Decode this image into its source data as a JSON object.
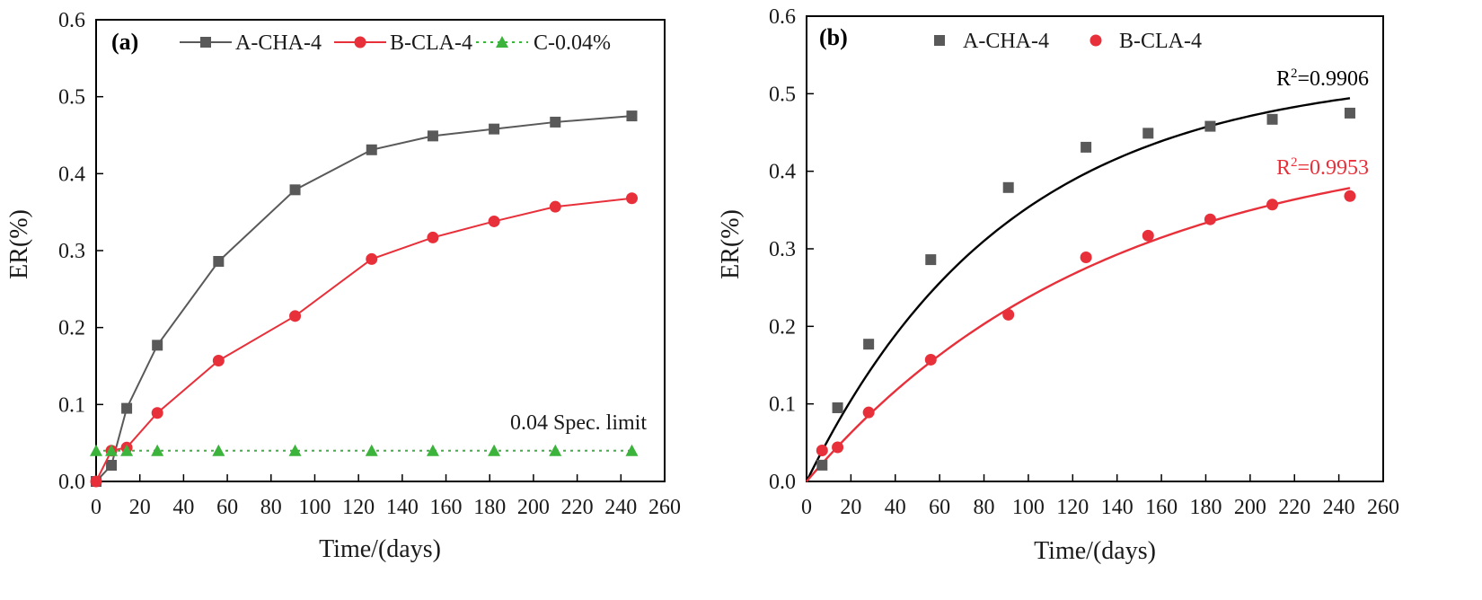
{
  "chart_data": [
    {
      "type": "line",
      "panel_label": "(a)",
      "xlabel": "Time/(days)",
      "ylabel": "ER(%)",
      "xlim": [
        0,
        260
      ],
      "ylim": [
        0,
        0.6
      ],
      "x_ticks": [
        0,
        20,
        40,
        60,
        80,
        100,
        120,
        140,
        160,
        180,
        200,
        220,
        240,
        260
      ],
      "x_tick_labels": [
        "0",
        "20",
        "40",
        "60",
        "80",
        "100",
        "120",
        "140",
        "160",
        "180",
        "200",
        "220",
        "240",
        "260"
      ],
      "y_ticks": [
        0,
        0.1,
        0.2,
        0.3,
        0.4,
        0.5,
        0.6
      ],
      "y_tick_labels": [
        "0.0",
        "0.1",
        "0.2",
        "0.3",
        "0.4",
        "0.5",
        "0.6"
      ],
      "legend_position": "top",
      "annotation": "0.04 Spec. limit",
      "series": [
        {
          "name": "A-CHA-4",
          "color": "#595959",
          "marker": "square",
          "line": "solid",
          "x": [
            0,
            7,
            14,
            28,
            56,
            91,
            126,
            154,
            182,
            210,
            245
          ],
          "values": [
            0,
            0.021,
            0.095,
            0.177,
            0.286,
            0.379,
            0.431,
            0.449,
            0.458,
            0.467,
            0.475
          ]
        },
        {
          "name": "B-CLA-4",
          "color": "#e8303a",
          "marker": "circle",
          "line": "solid",
          "x": [
            0,
            7,
            14,
            28,
            56,
            91,
            126,
            154,
            182,
            210,
            245
          ],
          "values": [
            0,
            0.04,
            0.044,
            0.089,
            0.157,
            0.215,
            0.289,
            0.317,
            0.338,
            0.357,
            0.368
          ]
        },
        {
          "name": "C-0.04%",
          "color": "#3cb43c",
          "marker": "triangle",
          "line": "dotted",
          "x": [
            0,
            7,
            14,
            28,
            56,
            91,
            126,
            154,
            182,
            210,
            245
          ],
          "values": [
            0.04,
            0.04,
            0.04,
            0.04,
            0.04,
            0.04,
            0.04,
            0.04,
            0.04,
            0.04,
            0.04
          ]
        }
      ]
    },
    {
      "type": "scatter",
      "panel_label": "(b)",
      "xlabel": "Time/(days)",
      "ylabel": "ER(%)",
      "xlim": [
        0,
        260
      ],
      "ylim": [
        0,
        0.6
      ],
      "x_ticks": [
        0,
        20,
        40,
        60,
        80,
        100,
        120,
        140,
        160,
        180,
        200,
        220,
        240,
        260
      ],
      "x_tick_labels": [
        "0",
        "20",
        "40",
        "60",
        "80",
        "100",
        "120",
        "140",
        "160",
        "180",
        "200",
        "220",
        "240",
        "260"
      ],
      "y_ticks": [
        0,
        0.1,
        0.2,
        0.3,
        0.4,
        0.5,
        0.6
      ],
      "y_tick_labels": [
        "0.0",
        "0.1",
        "0.2",
        "0.3",
        "0.4",
        "0.5",
        "0.6"
      ],
      "legend_position": "top",
      "series": [
        {
          "name": "A-CHA-4",
          "color": "#595959",
          "marker": "square",
          "x": [
            7,
            14,
            28,
            56,
            91,
            126,
            154,
            182,
            210,
            245
          ],
          "values": [
            0.021,
            0.095,
            0.177,
            0.286,
            0.379,
            0.431,
            0.449,
            0.458,
            0.467,
            0.475
          ]
        },
        {
          "name": "B-CLA-4",
          "color": "#e8303a",
          "marker": "circle",
          "x": [
            7,
            14,
            28,
            56,
            91,
            126,
            154,
            182,
            210,
            245
          ],
          "values": [
            0.04,
            0.044,
            0.089,
            0.157,
            0.215,
            0.289,
            0.317,
            0.338,
            0.357,
            0.368
          ]
        }
      ],
      "fits": [
        {
          "name": "A-CHA-4 fit",
          "color": "#000000",
          "a": 0.53,
          "b": 0.011,
          "x_range": [
            0,
            245
          ],
          "r2_prefix": "R",
          "r2_sup": "2",
          "r2_value": "=0.9906"
        },
        {
          "name": "B-CLA-4 fit",
          "color": "#e8303a",
          "a": 0.45,
          "b": 0.0075,
          "x_range": [
            0,
            245
          ],
          "r2_prefix": "R",
          "r2_sup": "2",
          "r2_value": "=0.9953"
        }
      ]
    }
  ]
}
